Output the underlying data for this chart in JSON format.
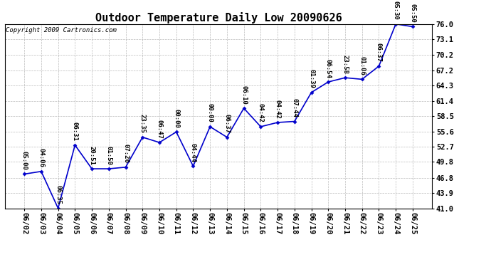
{
  "title": "Outdoor Temperature Daily Low 20090626",
  "copyright": "Copyright 2009 Cartronics.com",
  "line_color": "#0000CC",
  "marker_color": "#0000CC",
  "bg_color": "#ffffff",
  "grid_color": "#bbbbbb",
  "dates": [
    "06/02",
    "06/03",
    "06/04",
    "06/05",
    "06/06",
    "06/07",
    "06/08",
    "06/09",
    "06/10",
    "06/11",
    "06/12",
    "06/13",
    "06/14",
    "06/15",
    "06/16",
    "06/17",
    "06/18",
    "06/19",
    "06/20",
    "06/21",
    "06/22",
    "06/23",
    "06/24",
    "06/25"
  ],
  "values": [
    47.5,
    48.0,
    41.0,
    53.0,
    48.5,
    48.5,
    48.8,
    54.5,
    53.5,
    55.5,
    49.0,
    56.5,
    54.5,
    60.0,
    56.5,
    57.3,
    57.5,
    63.0,
    65.0,
    65.8,
    65.5,
    68.0,
    76.0,
    75.5
  ],
  "labels": [
    "05:00",
    "04:06",
    "06:35",
    "06:31",
    "20:51",
    "01:50",
    "07:26",
    "23:35",
    "06:47",
    "00:00",
    "04:44",
    "00:00",
    "06:37",
    "06:10",
    "04:42",
    "04:42",
    "07:44",
    "01:39",
    "06:54",
    "23:58",
    "01:06",
    "06:37",
    "05:30",
    "05:50"
  ],
  "ylim": [
    41.0,
    76.0
  ],
  "yticks": [
    41.0,
    43.9,
    46.8,
    49.8,
    52.7,
    55.6,
    58.5,
    61.4,
    64.3,
    67.2,
    70.2,
    73.1,
    76.0
  ],
  "title_fontsize": 11,
  "label_fontsize": 6.5,
  "tick_fontsize": 7.5,
  "copyright_fontsize": 6.5
}
